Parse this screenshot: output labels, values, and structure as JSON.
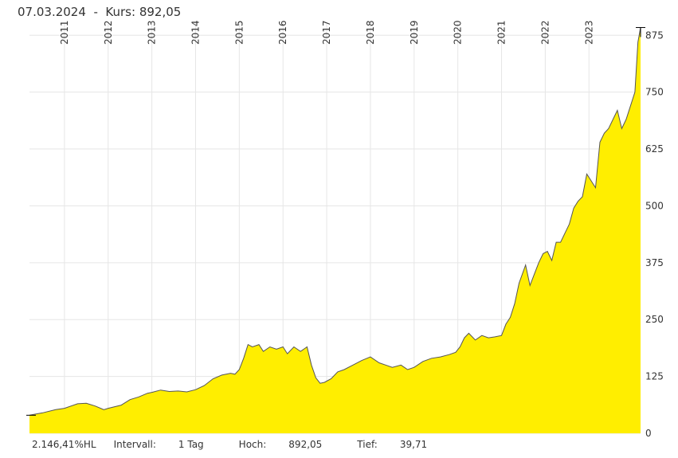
{
  "header": {
    "date": "07.03.2024",
    "separator": "-",
    "price_label": "Kurs:",
    "price": "892,05"
  },
  "footer": {
    "performance": "2.146,41%HL",
    "interval_label": "Intervall:",
    "interval": "1 Tag",
    "high_label": "Hoch:",
    "high": "892,05",
    "low_label": "Tief:",
    "low": "39,71"
  },
  "colors": {
    "fill": "#ffee00",
    "line": "#555555",
    "grid": "#e6e6e6"
  },
  "chart_data": {
    "type": "area",
    "title": "",
    "xlabel": "",
    "ylabel": "",
    "ylim": [
      0,
      900
    ],
    "xlim": [
      2010.2,
      2024.18
    ],
    "year_ticks": [
      "2011",
      "2012",
      "2013",
      "2014",
      "2015",
      "2016",
      "2017",
      "2018",
      "2019",
      "2020",
      "2021",
      "2022",
      "2023"
    ],
    "y_ticks": [
      "0",
      "125",
      "250",
      "375",
      "500",
      "625",
      "750",
      "875"
    ],
    "grid": true,
    "series": [
      {
        "x": [
          2010.2,
          2010.5,
          2010.8,
          2011.0,
          2011.3,
          2011.5,
          2011.7,
          2011.9,
          2012.0,
          2012.3,
          2012.5,
          2012.7,
          2012.9,
          2013.0,
          2013.2,
          2013.4,
          2013.6,
          2013.8,
          2014.0,
          2014.2,
          2014.4,
          2014.6,
          2014.8,
          2014.9,
          2015.0,
          2015.1,
          2015.2,
          2015.3,
          2015.45,
          2015.55,
          2015.7,
          2015.85,
          2016.0,
          2016.1,
          2016.25,
          2016.4,
          2016.55,
          2016.65,
          2016.75,
          2016.85,
          2016.95,
          2017.1,
          2017.25,
          2017.4,
          2017.6,
          2017.8,
          2018.0,
          2018.2,
          2018.35,
          2018.5,
          2018.7,
          2018.85,
          2019.0,
          2019.2,
          2019.4,
          2019.6,
          2019.8,
          2019.95,
          2020.05,
          2020.15,
          2020.25,
          2020.4,
          2020.55,
          2020.7,
          2020.85,
          2021.0,
          2021.1,
          2021.2,
          2021.3,
          2021.4,
          2021.55,
          2021.65,
          2021.75,
          2021.85,
          2021.95,
          2022.05,
          2022.15,
          2022.25,
          2022.35,
          2022.45,
          2022.55,
          2022.65,
          2022.75,
          2022.85,
          2022.95,
          2023.05,
          2023.15,
          2023.25,
          2023.35,
          2023.45,
          2023.55,
          2023.65,
          2023.75,
          2023.85,
          2023.95,
          2024.05,
          2024.12,
          2024.18
        ],
        "y": [
          39.71,
          45,
          52,
          55,
          65,
          66,
          60,
          52,
          55,
          62,
          74,
          80,
          88,
          90,
          95,
          92,
          93,
          91,
          96,
          105,
          120,
          128,
          132,
          130,
          140,
          165,
          195,
          190,
          195,
          180,
          190,
          185,
          190,
          175,
          190,
          180,
          190,
          150,
          122,
          110,
          112,
          120,
          135,
          140,
          150,
          160,
          168,
          155,
          150,
          145,
          150,
          140,
          145,
          158,
          165,
          168,
          173,
          178,
          190,
          210,
          220,
          205,
          215,
          210,
          212,
          215,
          240,
          255,
          285,
          330,
          370,
          325,
          350,
          375,
          395,
          400,
          380,
          420,
          420,
          440,
          460,
          495,
          510,
          520,
          570,
          555,
          540,
          640,
          660,
          670,
          690,
          710,
          670,
          690,
          720,
          750,
          860,
          892.05
        ]
      }
    ]
  }
}
